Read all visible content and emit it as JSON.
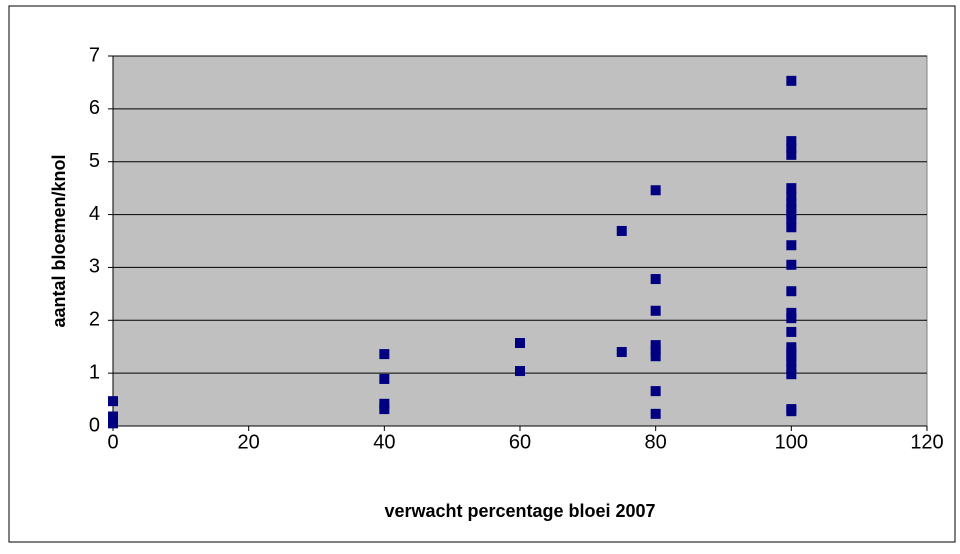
{
  "chart_data": {
    "type": "scatter",
    "xlabel": "verwacht percentage bloei 2007",
    "ylabel": "aantal bloemen/knol",
    "x": [
      0,
      0,
      0,
      0,
      40,
      40,
      40,
      40,
      60,
      60,
      75,
      75,
      80,
      80,
      80,
      80,
      80,
      80,
      80,
      80,
      100,
      100,
      100,
      100,
      100,
      100,
      100,
      100,
      100,
      100,
      100,
      100,
      100,
      100,
      100,
      100,
      100,
      100,
      100,
      100,
      100,
      100,
      100,
      100,
      100
    ],
    "values": [
      0.47,
      0.18,
      0.1,
      0.05,
      1.36,
      0.89,
      0.42,
      0.32,
      1.57,
      1.04,
      3.69,
      1.4,
      4.46,
      2.78,
      2.18,
      1.53,
      1.44,
      1.32,
      0.66,
      0.23,
      6.53,
      5.39,
      5.26,
      5.13,
      4.5,
      4.35,
      4.22,
      4.12,
      4.01,
      3.9,
      3.76,
      3.42,
      3.05,
      2.55,
      2.14,
      2.04,
      1.78,
      1.49,
      1.4,
      1.31,
      1.21,
      1.1,
      0.98,
      0.32,
      0.28
    ],
    "color": "#000080",
    "xlim": [
      0,
      120
    ],
    "xticks": [
      0,
      20,
      40,
      60,
      80,
      100,
      120
    ],
    "ylim": [
      0,
      7
    ],
    "yticks": [
      0,
      1,
      2,
      3,
      4,
      5,
      6,
      7
    ],
    "grid": true
  }
}
